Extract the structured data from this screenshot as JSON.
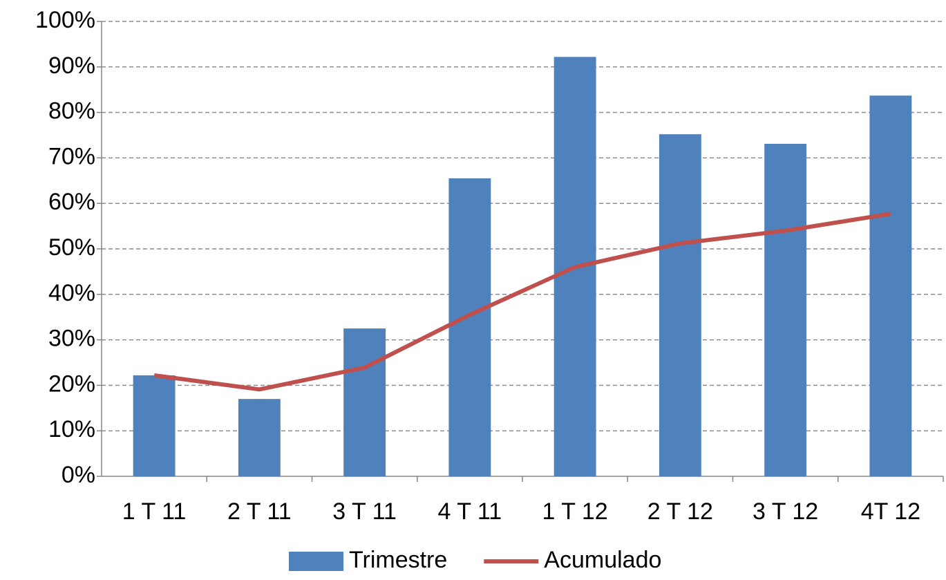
{
  "chart_data": {
    "type": "bar",
    "categories": [
      "1 T 11",
      "2 T 11",
      "3 T 11",
      "4 T 11",
      "1 T 12",
      "2 T 12",
      "3 T 12",
      "4T 12"
    ],
    "series": [
      {
        "name": "Trimestre",
        "type": "bar",
        "color": "#4f81bd",
        "values": [
          22.2,
          17,
          32.5,
          65.5,
          92.2,
          75.2,
          73.1,
          83.7
        ]
      },
      {
        "name": "Acumulado",
        "type": "line",
        "color": "#c0504d",
        "values": [
          22.2,
          19.1,
          23.9,
          35.5,
          46,
          51.2,
          54,
          57.7
        ]
      }
    ],
    "ylim": [
      0,
      100
    ],
    "yticks": [
      {
        "value": 0,
        "label": "0%"
      },
      {
        "value": 10,
        "label": "10%"
      },
      {
        "value": 20,
        "label": "20%"
      },
      {
        "value": 30,
        "label": "30%"
      },
      {
        "value": 40,
        "label": "40%"
      },
      {
        "value": 50,
        "label": "50%"
      },
      {
        "value": 60,
        "label": "60%"
      },
      {
        "value": 70,
        "label": "70%"
      },
      {
        "value": 80,
        "label": "80%"
      },
      {
        "value": 90,
        "label": "90%"
      },
      {
        "value": 100,
        "label": "100%"
      }
    ],
    "grid": true,
    "legend": "bottom"
  }
}
